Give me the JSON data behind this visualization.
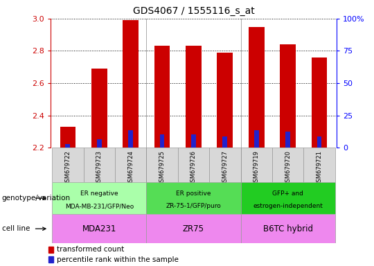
{
  "title": "GDS4067 / 1555116_s_at",
  "samples": [
    "GSM679722",
    "GSM679723",
    "GSM679724",
    "GSM679725",
    "GSM679726",
    "GSM679727",
    "GSM679719",
    "GSM679720",
    "GSM679721"
  ],
  "red_values": [
    2.33,
    2.69,
    2.99,
    2.83,
    2.83,
    2.79,
    2.95,
    2.84,
    2.76
  ],
  "blue_values": [
    2.22,
    2.25,
    2.31,
    2.28,
    2.28,
    2.27,
    2.31,
    2.3,
    2.27
  ],
  "ymin": 2.2,
  "ymax": 3.0,
  "y_ticks": [
    2.2,
    2.4,
    2.6,
    2.8,
    3.0
  ],
  "right_yticks": [
    0,
    25,
    50,
    75,
    100
  ],
  "right_yticklabels": [
    "0",
    "25",
    "50",
    "75",
    "100%"
  ],
  "bar_width": 0.5,
  "red_color": "#cc0000",
  "blue_color": "#2222cc",
  "groups": [
    {
      "label": "ER negative\nMDA-MB-231/GFP/Neo",
      "start": 0,
      "end": 3,
      "color": "#aaffaa"
    },
    {
      "label": "ER positive\nZR-75-1/GFP/puro",
      "start": 3,
      "end": 6,
      "color": "#55dd55"
    },
    {
      "label": "GFP+ and\nestrogen-independent",
      "start": 6,
      "end": 9,
      "color": "#22cc22"
    }
  ],
  "cell_lines": [
    {
      "label": "MDA231",
      "start": 0,
      "end": 3
    },
    {
      "label": "ZR75",
      "start": 3,
      "end": 6
    },
    {
      "label": "B6TC hybrid",
      "start": 6,
      "end": 9
    }
  ],
  "cell_line_color": "#ee88ee",
  "sample_bg_color": "#d8d8d8",
  "genotype_label": "genotype/variation",
  "cell_line_label": "cell line",
  "legend_red": "transformed count",
  "legend_blue": "percentile rank within the sample",
  "title_fontsize": 10,
  "ytick_fontsize": 8,
  "xtick_fontsize": 6,
  "row_label_fontsize": 7.5,
  "group_fontsize": 6.5,
  "cell_fontsize": 8.5,
  "legend_fontsize": 7.5
}
